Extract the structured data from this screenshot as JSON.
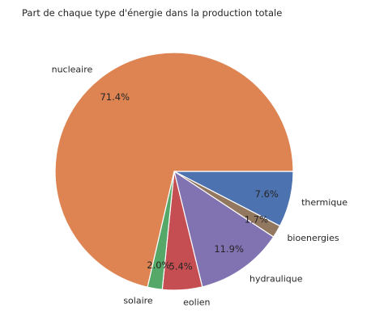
{
  "chart_data": {
    "type": "pie",
    "title": "Part de chaque type d'énergie dans la production totale",
    "slices": [
      {
        "label": "thermique",
        "percent_label": "7.6%",
        "value": 7.6,
        "color": "#4c72b0"
      },
      {
        "label": "bioenergies",
        "percent_label": "1.7%",
        "value": 1.7,
        "color": "#937860"
      },
      {
        "label": "hydraulique",
        "percent_label": "11.9%",
        "value": 11.9,
        "color": "#8172b2"
      },
      {
        "label": "eolien",
        "percent_label": "5.4%",
        "value": 5.4,
        "color": "#c44e52"
      },
      {
        "label": "solaire",
        "percent_label": "2.0%",
        "value": 2.0,
        "color": "#55a868"
      },
      {
        "label": "nucleaire",
        "percent_label": "71.4%",
        "value": 71.4,
        "color": "#dd8452"
      }
    ],
    "start_angle_deg": 0,
    "direction": "clockwise"
  }
}
